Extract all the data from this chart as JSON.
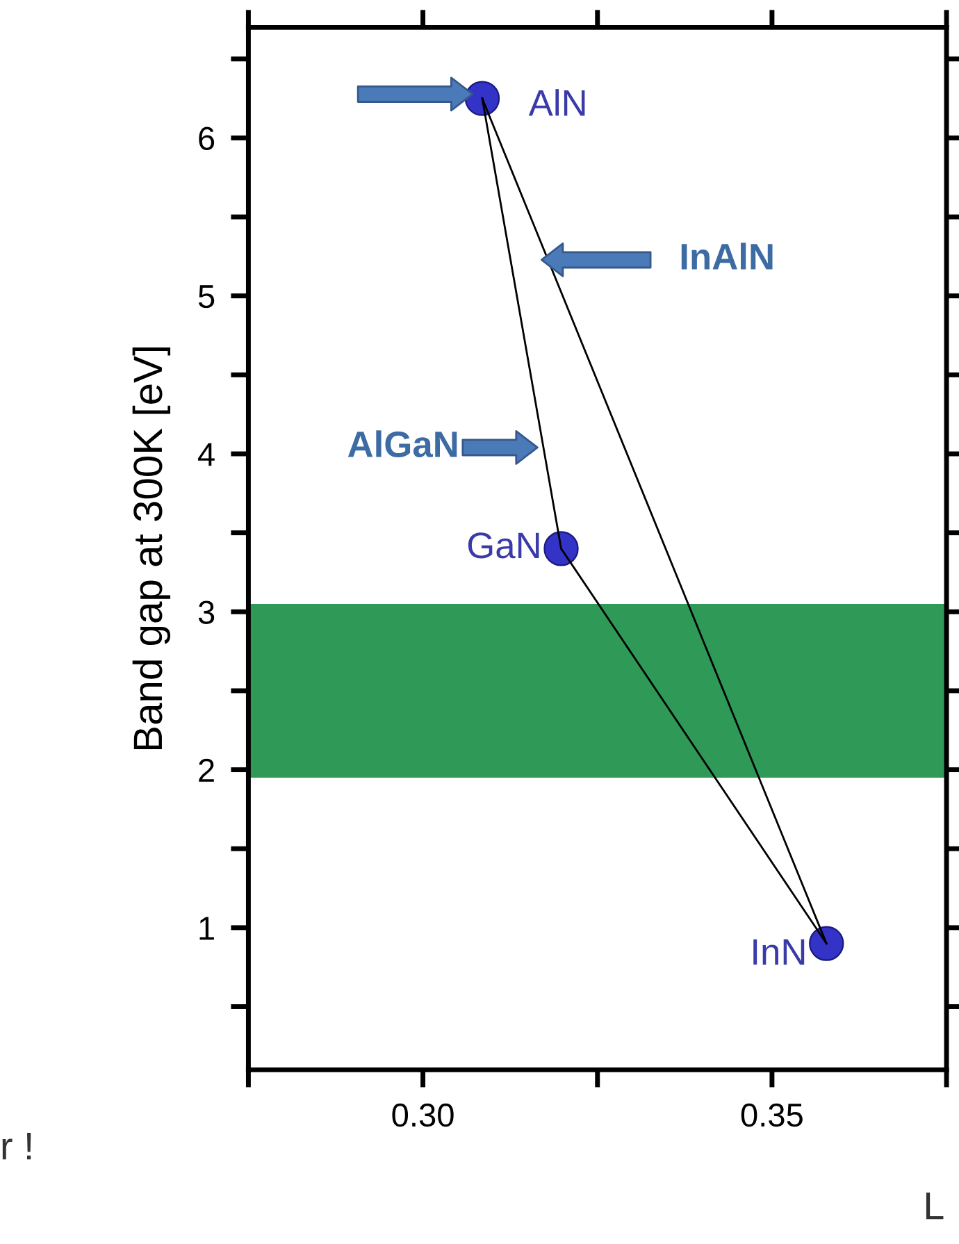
{
  "chart_data": {
    "type": "scatter",
    "ylabel": "Band gap at 300K [eV]",
    "xlim": [
      0.275,
      0.375
    ],
    "ylim": [
      0.1,
      6.7
    ],
    "xticks": [
      {
        "value": 0.275,
        "label": null
      },
      {
        "value": 0.3,
        "label": "0.30"
      },
      {
        "value": 0.325,
        "label": null
      },
      {
        "value": 0.35,
        "label": "0.35"
      },
      {
        "value": 0.375,
        "label": null
      }
    ],
    "yticks": [
      {
        "value": 0.5,
        "label": null
      },
      1,
      {
        "value": 1.5,
        "label": null
      },
      2,
      {
        "value": 2.5,
        "label": null
      },
      3,
      {
        "value": 3.5,
        "label": null
      },
      4,
      {
        "value": 4.5,
        "label": null
      },
      5,
      {
        "value": 5.5,
        "label": null
      },
      6,
      {
        "value": 6.5,
        "label": null
      }
    ],
    "series": [
      {
        "type": "line",
        "color": "#000000",
        "x": [
          0.3085,
          0.3198
        ],
        "values": [
          6.25,
          3.4
        ],
        "marker": "none"
      },
      {
        "type": "line",
        "color": "#000000",
        "x": [
          0.3198,
          0.3578
        ],
        "values": [
          3.4,
          0.9
        ],
        "marker": "none"
      },
      {
        "type": "line",
        "color": "#000000",
        "x": [
          0.3085,
          0.3578
        ],
        "values": [
          6.25,
          0.9
        ],
        "marker": "none"
      },
      {
        "color": "#3333c8",
        "x": [
          0.3085,
          0.3198,
          0.3578
        ],
        "values": [
          6.25,
          3.4,
          0.9
        ],
        "marker": "circle"
      }
    ],
    "bands": [
      {
        "axis": "y",
        "from": 1.95,
        "to": 3.05,
        "color": "#2f9a58"
      }
    ],
    "annotations": [
      {
        "text": "AlN",
        "x": 0.3085,
        "y": 6.25
      },
      {
        "text": "GaN",
        "x": 0.3198,
        "y": 3.4
      },
      {
        "text": "InN",
        "x": 0.3578,
        "y": 0.9
      },
      "InAlN",
      "AlGaN",
      "r !",
      "L"
    ],
    "grid": false,
    "legend": false
  }
}
